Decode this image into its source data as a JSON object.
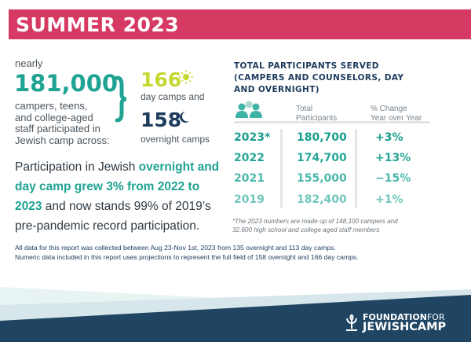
{
  "title": "SUMMER 2023",
  "left": {
    "nearly": "nearly",
    "total": "181,000",
    "desc": [
      "campers, teens,",
      "and college-aged",
      "staff participated in",
      "Jewish camp across:"
    ],
    "day_count": "166",
    "day_label": "day camps and",
    "overnight_count": "158",
    "overnight_label": "overnight camps"
  },
  "paragraph": {
    "p1": "Participation in Jewish ",
    "h1": "overnight and day camp grew 3% from 2022 to 2023",
    "p2": " and now stands 99% of 2019’s pre-pandemic record participation."
  },
  "table": {
    "heading": [
      "TOTAL PARTICIPANTS SERVED",
      "(CAMPERS AND COUNSELORS, DAY",
      "AND OVERNIGHT)"
    ],
    "col_total": [
      "Total",
      "Participants"
    ],
    "col_change": [
      "% Change",
      "Year over Year"
    ],
    "rows": [
      {
        "year": "2023*",
        "total": "180,700",
        "change": "+3%"
      },
      {
        "year": "2022",
        "total": "174,700",
        "change": "+13%"
      },
      {
        "year": "2021",
        "total": "155,000",
        "change": "−15%"
      },
      {
        "year": "2019",
        "total": "182,400",
        "change": "+1%"
      }
    ],
    "footnote": [
      "*The 2023 numbers are made up of 148,100 campers and",
      "32,600 high school and college aged staff members"
    ]
  },
  "note": [
    "All data for this report was collected between Aug 23-Nov 1st, 2023 from 135 overnight and 113 day camps.",
    "Numeric data included in this report uses projections to represent the full field of 158 overnight and 166 day camps."
  ],
  "logo": {
    "line1a": "FOUNDATION",
    "line1b": "FOR",
    "line2": "JEWISHCAMP"
  },
  "colors": {
    "pink": "#d63a63",
    "teal": "#1fa393",
    "navy": "#1d3b5c",
    "lime": "#c5d832"
  }
}
